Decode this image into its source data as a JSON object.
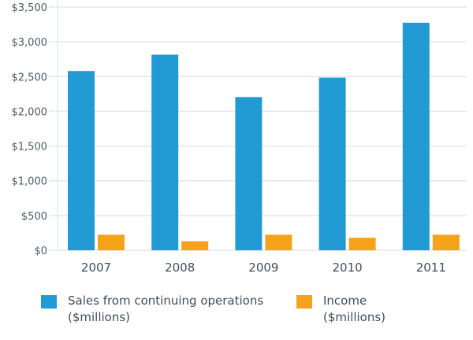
{
  "chart_data": {
    "type": "bar",
    "title": "",
    "xlabel": "",
    "ylabel": "",
    "categories": [
      "2007",
      "2008",
      "2009",
      "2010",
      "2011"
    ],
    "series": [
      {
        "name": "Sales from continuing operations ($millions)",
        "label_line1": "Sales from continuing operations",
        "label_line2": "($millions)",
        "color": "#229bd4",
        "values": [
          2580,
          2815,
          2205,
          2485,
          3275
        ]
      },
      {
        "name": "Income ($millions)",
        "label_line1": "Income",
        "label_line2": "($millions)",
        "color": "#f7a21b",
        "values": [
          225,
          130,
          225,
          180,
          225
        ]
      }
    ],
    "ylim": [
      0,
      3500
    ],
    "yticks": [
      0,
      500,
      1000,
      1500,
      2000,
      2500,
      3000,
      3500
    ],
    "ytick_labels": [
      "$0",
      "$500",
      "$1,000",
      "$1,500",
      "$2,000",
      "$2,500",
      "$3,000",
      "$3,500"
    ],
    "grid": true,
    "legend_position": "bottom"
  }
}
